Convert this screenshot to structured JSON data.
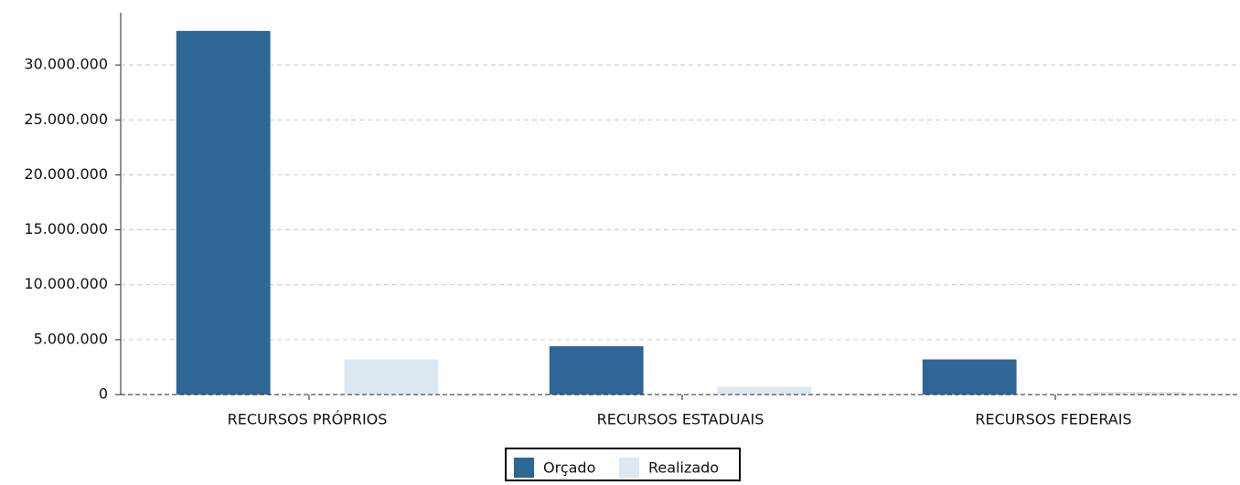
{
  "chart_data": {
    "type": "bar",
    "categories": [
      "RECURSOS PRÓPRIOS",
      "RECURSOS ESTADUAIS",
      "RECURSOS FEDERAIS"
    ],
    "series": [
      {
        "name": "Orçado",
        "color": "#2e6796",
        "values": [
          33100000,
          4400000,
          3200000
        ]
      },
      {
        "name": "Realizado",
        "color": "#dce8f2",
        "values": [
          3200000,
          700000,
          250000
        ]
      }
    ],
    "ylim": [
      0,
      35000000
    ],
    "yticks": [
      0,
      {
        "value": 5000000,
        "label": "5.000.000"
      },
      {
        "value": 10000000,
        "label": "10.000.000"
      },
      {
        "value": 15000000,
        "label": "15.000.000"
      },
      {
        "value": 20000000,
        "label": "20.000.000"
      },
      {
        "value": 25000000,
        "label": "25.000.000"
      },
      {
        "value": 30000000,
        "label": "30.000.000"
      }
    ],
    "grid": true,
    "legend": "bottom"
  }
}
